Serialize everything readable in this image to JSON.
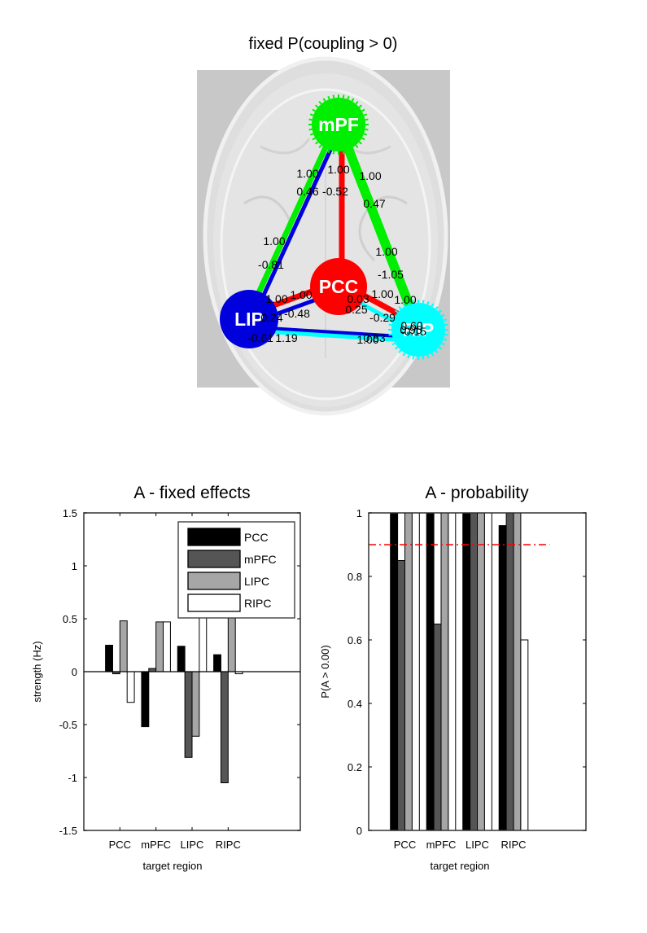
{
  "chart_data": [
    {
      "type": "network",
      "title": "fixed P(coupling > 0)",
      "nodes": [
        {
          "id": "mPF",
          "label": "mPF",
          "color": "#00ee00"
        },
        {
          "id": "PCC",
          "label": "PCC",
          "color": "#ff0000"
        },
        {
          "id": "LIP",
          "label": "LIP",
          "color": "#0000dd"
        },
        {
          "id": "RIP",
          "label": "RIP",
          "color": "#00ffff"
        }
      ],
      "edges": [
        {
          "from": "mPF",
          "to": "LIP",
          "color": "#00ee00",
          "labels": [
            "1.00",
            "0.46"
          ]
        },
        {
          "from": "mPF",
          "to": "PCC",
          "color": "#ff0000",
          "labels": [
            "1.00",
            "-0.52"
          ]
        },
        {
          "from": "mPF",
          "to": "RIP",
          "color": "#00ee00",
          "labels": [
            "1.00",
            "0.47"
          ]
        },
        {
          "from": "LIP",
          "to": "mPF",
          "color": "#0000dd",
          "labels": [
            "1.00",
            "-0.81"
          ]
        },
        {
          "from": "RIP",
          "to": "mPF",
          "color": "#00ee00",
          "labels": [
            "1.00",
            "-1.05"
          ]
        },
        {
          "from": "PCC",
          "to": "LIP",
          "color": "#ff0000",
          "labels": [
            "1.00",
            "0.24"
          ]
        },
        {
          "from": "LIP",
          "to": "PCC",
          "color": "#0000dd",
          "labels": [
            "1.00",
            "-0.48"
          ]
        },
        {
          "from": "PCC",
          "to": "RIP",
          "color": "#ff0000",
          "labels": [
            "1.00",
            "0.95"
          ]
        },
        {
          "from": "RIP",
          "to": "PCC",
          "color": "#00ffff",
          "labels": [
            "1.00",
            "-0.29"
          ]
        },
        {
          "from": "LIP",
          "to": "RIP",
          "color": "#0000dd",
          "labels": [
            "1.00",
            "0.83"
          ]
        },
        {
          "from": "RIP",
          "to": "LIP",
          "color": "#00ffff",
          "labels": [
            "0.60",
            "-0.15"
          ]
        }
      ],
      "extra_labels": [
        "-0.61",
        "1.19",
        "0.25",
        "0.03"
      ]
    },
    {
      "type": "bar",
      "title": "A - fixed effects",
      "xlabel": "target region",
      "ylabel": "strength (Hz)",
      "categories": [
        "PCC",
        "mPFC",
        "LIPC",
        "RIPC"
      ],
      "xlim": [
        0,
        6
      ],
      "ylim": [
        -1.5,
        1.5
      ],
      "yticks": [
        "-1.5",
        "-1",
        "-0.5",
        "0",
        "0.5",
        "1",
        "1.5"
      ],
      "ytick_values": [
        -1.5,
        -1,
        -0.5,
        0,
        0.5,
        1,
        1.5
      ],
      "legend": {
        "placement": "top-right",
        "entries": [
          "PCC",
          "mPFC",
          "LIPC",
          "RIPC"
        ]
      },
      "series": [
        {
          "name": "PCC",
          "color": "#000000",
          "values": [
            0.25,
            -0.52,
            0.24,
            0.16
          ]
        },
        {
          "name": "mPFC",
          "color": "#555555",
          "values": [
            -0.02,
            0.03,
            -0.81,
            -1.05
          ]
        },
        {
          "name": "LIPC",
          "color": "#a6a6a6",
          "values": [
            0.48,
            0.47,
            -0.61,
            1.0
          ]
        },
        {
          "name": "RIPC",
          "color": "#ffffff",
          "values": [
            -0.29,
            0.47,
            0.95,
            -0.02
          ]
        }
      ]
    },
    {
      "type": "bar",
      "title": "A - probability",
      "xlabel": "target region",
      "ylabel": "P(A > 0.00)",
      "categories": [
        "PCC",
        "mPFC",
        "LIPC",
        "RIPC"
      ],
      "xlim": [
        0,
        6
      ],
      "ylim": [
        0,
        1
      ],
      "yticks": [
        "0",
        "0.2",
        "0.4",
        "0.6",
        "0.8",
        "1"
      ],
      "ytick_values": [
        0,
        0.2,
        0.4,
        0.6,
        0.8,
        1
      ],
      "threshold": {
        "value": 0.9,
        "x_range": [
          0,
          5
        ],
        "color": "#ff0000",
        "style": "dash-dot"
      },
      "series": [
        {
          "name": "PCC",
          "color": "#000000",
          "values": [
            1.0,
            1.0,
            1.0,
            0.96
          ]
        },
        {
          "name": "mPFC",
          "color": "#555555",
          "values": [
            0.85,
            0.65,
            1.0,
            1.0
          ]
        },
        {
          "name": "LIPC",
          "color": "#a6a6a6",
          "values": [
            1.0,
            1.0,
            1.0,
            1.0
          ]
        },
        {
          "name": "RIPC",
          "color": "#ffffff",
          "values": [
            1.0,
            1.0,
            1.0,
            0.6
          ]
        }
      ]
    }
  ]
}
